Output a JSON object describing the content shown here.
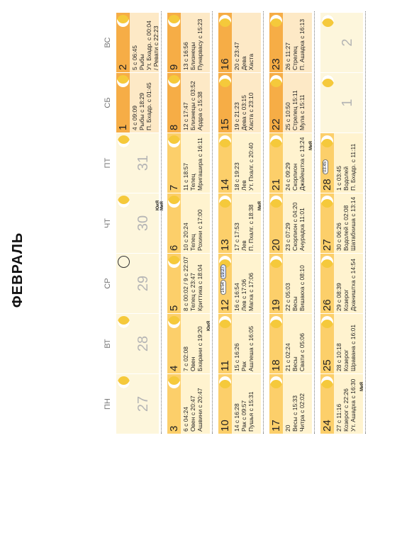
{
  "title": "ФЕВРАЛЬ",
  "colors": {
    "band": "#fccf6a",
    "band_dark": "#f6ad46",
    "cell": "#fff3cf",
    "weekend": "#fde9c6",
    "moon": "#f5c93b",
    "other_month": "#fdf6dc"
  },
  "day_headers": [
    "ПН",
    "ВТ",
    "СР",
    "ЧТ",
    "ПТ",
    "СБ",
    "ВС"
  ],
  "weeks": [
    {
      "tags": [
        {
          "text": "ЮиЯ",
          "col": 3
        },
        {
          "text": "МиЯ",
          "col": 3
        }
      ],
      "days": [
        {
          "num": "27",
          "other": true
        },
        {
          "num": "28",
          "other": true
        },
        {
          "num": "29",
          "other": true,
          "moon_icon": "new-moon-icon"
        },
        {
          "num": "30",
          "other": true
        },
        {
          "num": "31",
          "other": true
        },
        {
          "num": "1",
          "lines": [
            "4 с 09:09",
            "Рыбы с 18:29",
            "П. Бхадр. с 01:45"
          ]
        },
        {
          "num": "2",
          "lines": [
            "5 с 06:45",
            "Рыбы",
            "Ут. Бхадр. с 00:04",
            "/ Ревати с 22:23"
          ]
        }
      ]
    },
    {
      "tags": [
        {
          "text": "ЮиЯ",
          "col": 1
        }
      ],
      "days": [
        {
          "num": "3",
          "lines": [
            "6 с 04:24",
            "Овен с 20:47",
            "Ашвини с 20:47"
          ]
        },
        {
          "num": "4",
          "lines": [
            "7 с 02:08",
            "Овен",
            "Бхарани с 19:20"
          ]
        },
        {
          "num": "5",
          "lines": [
            "8 с 00:02 / 9 с 22:07",
            "Телец с 23:47",
            "Криттика с 18:04"
          ]
        },
        {
          "num": "6",
          "lines": [
            "10 с 20:24",
            "Телец",
            "Рохини с 17:00"
          ]
        },
        {
          "num": "7",
          "lines": [
            "11 с 18:57",
            "Телец",
            "Мригашира с 16:11"
          ]
        },
        {
          "num": "8",
          "lines": [
            "12 с 17:47",
            "Близнецы с 03:52",
            "Ардра с 15:38"
          ]
        },
        {
          "num": "9",
          "lines": [
            "13 с 16:56",
            "Близнецы",
            "Пунарвасу с 15:23"
          ]
        }
      ]
    },
    {
      "tags": [
        {
          "text": "МиЯ",
          "col": 3
        }
      ],
      "days": [
        {
          "num": "10",
          "lines": [
            "14 с 16:28",
            "Рак с 09:57",
            "Пушья с 15:31"
          ]
        },
        {
          "num": "11",
          "lines": [
            "15 с 16:26",
            "Рак",
            "Ашлеша с 16:05"
          ]
        },
        {
          "num": "12",
          "lines": [
            "16 с 16:54",
            "Лев с 17:06",
            "Магха с 17:06"
          ],
          "badges": [
            "16:54",
            "19:27"
          ]
        },
        {
          "num": "13",
          "lines": [
            "17 с 17:53",
            "Лев",
            "П. Пхалг. с 18:38"
          ]
        },
        {
          "num": "14",
          "lines": [
            "18 с 19:23",
            "Лев",
            "Ут. Пхалг. с 20:40"
          ]
        },
        {
          "num": "15",
          "lines": [
            "19 с 21:23",
            "Дева с 03:15",
            "Хаста с 23:10"
          ]
        },
        {
          "num": "16",
          "lines": [
            "20 с 23:47",
            "Дева",
            "Хаста"
          ]
        }
      ]
    },
    {
      "tags": [
        {
          "text": "МиЯ",
          "col": 4
        }
      ],
      "days": [
        {
          "num": "17",
          "lines": [
            "20",
            "Весы с 15:33",
            "Читра с 02:02"
          ]
        },
        {
          "num": "18",
          "lines": [
            "21 с 02:24",
            "Весы",
            "Свати с 05:06"
          ]
        },
        {
          "num": "19",
          "lines": [
            "22 с 05:03",
            "Весы",
            "Вишакха с 08:10"
          ]
        },
        {
          "num": "20",
          "lines": [
            "23 с 07:29",
            "Скорпион с 04:20",
            "Анурадха 11:01"
          ]
        },
        {
          "num": "21",
          "lines": [
            "24 с 09:29",
            "Скорпион",
            "Джайештха с 13:24"
          ]
        },
        {
          "num": "22",
          "lines": [
            "25 с 10:50",
            "Стрелец 15:11",
            "Мула с 15:11"
          ]
        },
        {
          "num": "23",
          "lines": [
            "26 с 11:27",
            "Стрелец",
            "П. Ашадха с 16:13"
          ]
        }
      ]
    },
    {
      "tags": [
        {
          "text": "МиЯ",
          "col": 0
        }
      ],
      "days": [
        {
          "num": "24",
          "lines": [
            "27 с 11:16",
            "Козерог с 22:26",
            "Ут. Ашадха с 16:30"
          ]
        },
        {
          "num": "25",
          "lines": [
            "28 с 10:18",
            "Козерог",
            "Шравана с 16:01"
          ]
        },
        {
          "num": "26",
          "lines": [
            "29 с 08:39",
            "Козерог",
            "Дхаништха с 14:54"
          ]
        },
        {
          "num": "27",
          "lines": [
            "30 с 06:26",
            "Водолей с 02:08",
            "Шатабхиша с 13:14"
          ]
        },
        {
          "num": "28",
          "lines": [
            "1 с 03:45",
            "Водолей",
            "П. Бхадр. с 11:11"
          ],
          "badges": [
            "03:45"
          ]
        },
        {
          "num": "1",
          "other": true
        },
        {
          "num": "2",
          "other": true
        }
      ]
    }
  ]
}
